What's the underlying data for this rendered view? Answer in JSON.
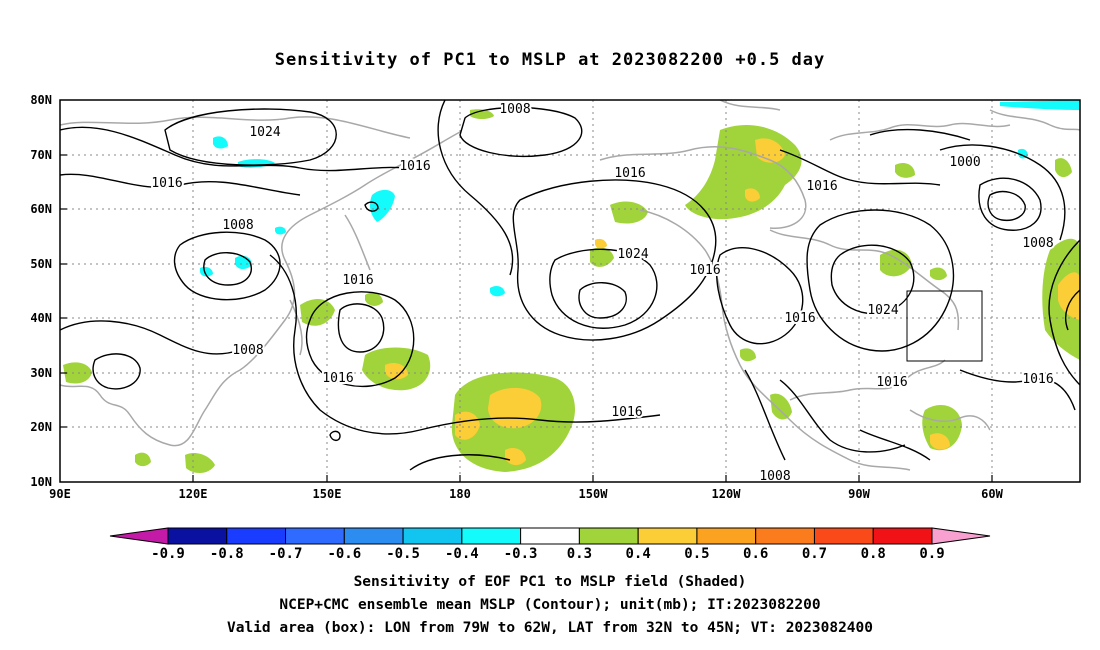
{
  "title": "Sensitivity of PC1 to MSLP at 2023082200 +0.5 day",
  "captions": {
    "line1": "Sensitivity of EOF PC1 to MSLP field (Shaded)",
    "line2": "NCEP+CMC ensemble mean MSLP (Contour); unit(mb); IT:2023082200",
    "line3": "Valid area (box): LON from 79W to 62W, LAT from 32N to 45N; VT: 2023082400"
  },
  "axes": {
    "lat_labels": [
      "80N",
      "70N",
      "60N",
      "50N",
      "40N",
      "30N",
      "20N",
      "10N"
    ],
    "lon_labels": [
      "90E",
      "120E",
      "150E",
      "180",
      "150W",
      "120W",
      "90W",
      "60W"
    ]
  },
  "contour_labels": [
    "1008",
    "1024",
    "1016",
    "1016",
    "1016",
    "1016",
    "1000",
    "1008",
    "1024",
    "1016",
    "1016",
    "1024",
    "1016",
    "1016",
    "1008",
    "1016",
    "1016",
    "1016",
    "1008",
    "1008"
  ],
  "colorbar": {
    "labels": [
      "-0.9",
      "-0.8",
      "-0.7",
      "-0.6",
      "-0.5",
      "-0.4",
      "-0.3",
      "0.3",
      "0.4",
      "0.5",
      "0.6",
      "0.7",
      "0.8",
      "0.9"
    ],
    "colors": [
      "#0a10a0",
      "#1a3cff",
      "#2f6bff",
      "#2d8cf0",
      "#12c4f0",
      "#13fbfb",
      "#ffffff",
      "#a0d43a",
      "#fbcd36",
      "#fba221",
      "#fb7c1d",
      "#fb4a19",
      "#f01216"
    ],
    "low_color": "#c41aa8",
    "high_color": "#f8a0d0"
  },
  "shading_colors": {
    "green": "#a0d43a",
    "yellow": "#fbcd36",
    "cyan": "#13fbfb"
  },
  "valid_box": {
    "lon_from": "79W",
    "lon_to": "62W",
    "lat_from": "32N",
    "lat_to": "45N"
  }
}
